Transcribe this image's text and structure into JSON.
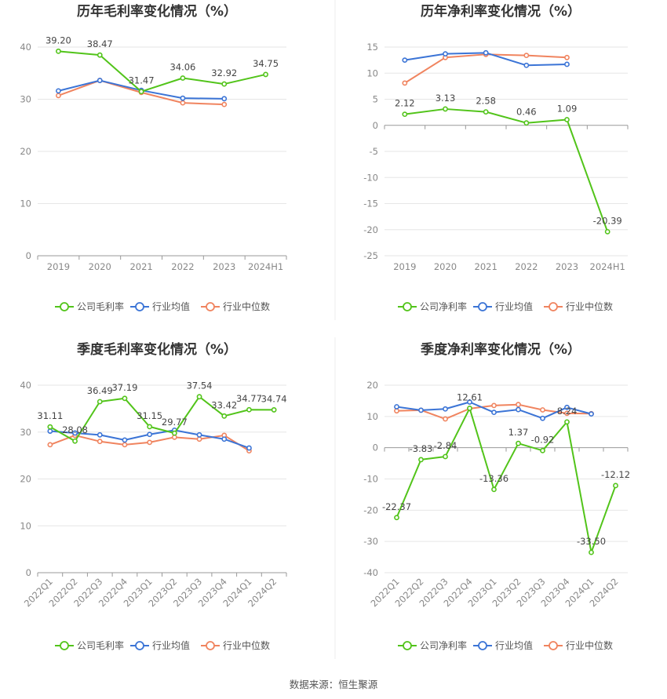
{
  "colors": {
    "company": "#52c41a",
    "avg": "#3b74d6",
    "median": "#f0845f",
    "grid": "#e6e6e6",
    "axis": "#999999"
  },
  "legend_labels": {
    "gross": [
      "公司毛利率",
      "行业均值",
      "行业中位数"
    ],
    "net": [
      "公司净利率",
      "行业均值",
      "行业中位数"
    ]
  },
  "source": "数据来源：恒生聚源",
  "chart_data": [
    {
      "type": "line",
      "title": "历年毛利率变化情况（%）",
      "categories": [
        "2019",
        "2020",
        "2021",
        "2022",
        "2023",
        "2024H1"
      ],
      "ylim": [
        0,
        40
      ],
      "yticks": [
        0,
        10,
        20,
        30,
        40
      ],
      "grid": true,
      "legend_position": "bottom",
      "series": [
        {
          "name": "公司毛利率",
          "values": [
            39.2,
            38.47,
            31.47,
            34.06,
            32.92,
            34.75
          ],
          "labels": [
            "39.20",
            "38.47",
            "31.47",
            "34.06",
            "32.92",
            "34.75"
          ]
        },
        {
          "name": "行业均值",
          "values": [
            31.6,
            33.6,
            31.7,
            30.2,
            30.1,
            null
          ]
        },
        {
          "name": "行业中位数",
          "values": [
            30.7,
            33.6,
            31.3,
            29.3,
            29.0,
            null
          ]
        }
      ]
    },
    {
      "type": "line",
      "title": "历年净利率变化情况（%）",
      "categories": [
        "2019",
        "2020",
        "2021",
        "2022",
        "2023",
        "2024H1"
      ],
      "ylim": [
        -25,
        15
      ],
      "yticks": [
        -25,
        -20,
        -15,
        -10,
        -5,
        0,
        5,
        10,
        15
      ],
      "grid": true,
      "legend_position": "bottom",
      "series": [
        {
          "name": "公司净利率",
          "values": [
            2.12,
            3.13,
            2.58,
            0.46,
            1.09,
            -20.39
          ],
          "labels": [
            "2.12",
            "3.13",
            "2.58",
            "0.46",
            "1.09",
            "-20.39"
          ]
        },
        {
          "name": "行业均值",
          "values": [
            12.5,
            13.7,
            13.9,
            11.5,
            11.7,
            null
          ]
        },
        {
          "name": "行业中位数",
          "values": [
            8.1,
            13.0,
            13.6,
            13.4,
            13.0,
            null
          ]
        }
      ]
    },
    {
      "type": "line",
      "title": "季度毛利率变化情况（%）",
      "categories": [
        "2022Q1",
        "2022Q2",
        "2022Q3",
        "2022Q4",
        "2023Q1",
        "2023Q2",
        "2023Q3",
        "2023Q4",
        "2024Q1",
        "2024Q2"
      ],
      "ylim": [
        0,
        40
      ],
      "yticks": [
        0,
        10,
        20,
        30,
        40
      ],
      "grid": true,
      "legend_position": "bottom",
      "series": [
        {
          "name": "公司毛利率",
          "values": [
            31.11,
            28.08,
            36.49,
            37.19,
            31.15,
            29.77,
            37.54,
            33.42,
            34.77,
            34.74
          ],
          "labels": [
            "31.11",
            "28.08",
            "36.49",
            "37.19",
            "31.15",
            "29.77",
            "37.54",
            "33.42",
            "34.77",
            "34.74"
          ]
        },
        {
          "name": "行业均值",
          "values": [
            30.2,
            29.8,
            29.4,
            28.3,
            29.5,
            30.4,
            29.4,
            28.5,
            26.6,
            null
          ]
        },
        {
          "name": "行业中位数",
          "values": [
            27.3,
            29.3,
            28.0,
            27.3,
            27.8,
            28.9,
            28.5,
            29.3,
            26.0,
            null
          ]
        }
      ]
    },
    {
      "type": "line",
      "title": "季度净利率变化情况（%）",
      "categories": [
        "2022Q1",
        "2022Q2",
        "2022Q3",
        "2022Q4",
        "2023Q1",
        "2023Q2",
        "2023Q3",
        "2023Q4",
        "2024Q1",
        "2024Q2"
      ],
      "ylim": [
        -40,
        20
      ],
      "yticks": [
        -40,
        -30,
        -20,
        -10,
        0,
        10,
        20
      ],
      "grid": true,
      "legend_position": "bottom",
      "series": [
        {
          "name": "公司净利率",
          "values": [
            -22.37,
            -3.83,
            -2.84,
            12.61,
            -13.36,
            1.37,
            -0.92,
            8.24,
            -33.5,
            -12.12
          ],
          "labels": [
            "-22.37",
            "-3.83",
            "-2.84",
            "12.61",
            "-13.36",
            "1.37",
            "-0.92",
            "8.24",
            "-33.50",
            "-12.12"
          ]
        },
        {
          "name": "行业均值",
          "values": [
            13.1,
            12.0,
            12.4,
            14.6,
            11.3,
            12.2,
            9.4,
            12.9,
            10.8,
            null
          ]
        },
        {
          "name": "行业中位数",
          "values": [
            11.8,
            12.0,
            9.2,
            12.5,
            13.5,
            13.8,
            12.1,
            11.0,
            10.9,
            null
          ]
        }
      ]
    }
  ]
}
